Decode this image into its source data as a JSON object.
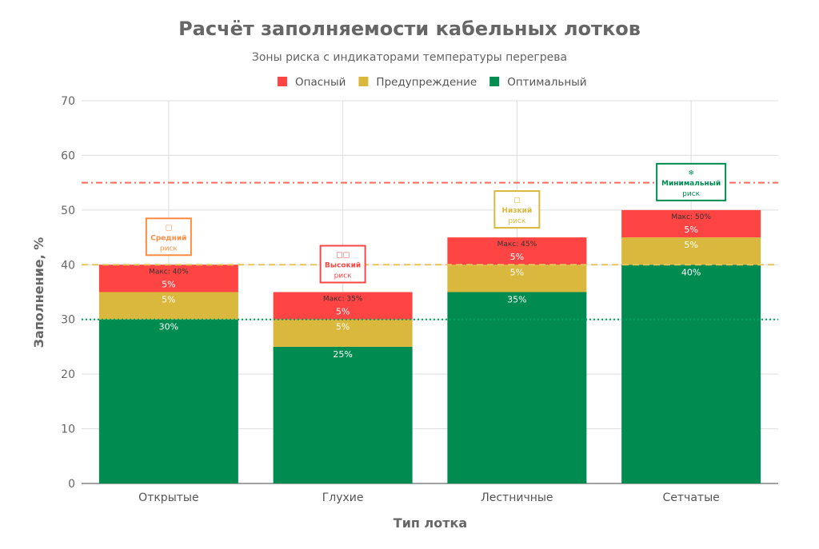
{
  "chart_data": {
    "type": "bar",
    "stacked": true,
    "title": "Расчёт заполняемости кабельных лотков",
    "subtitle": "Зоны риска с индикаторами температуры перегрева",
    "xlabel": "Тип лотка",
    "ylabel": "Заполнение, %",
    "ylim": [
      0,
      70
    ],
    "yticks": [
      0,
      10,
      20,
      30,
      40,
      50,
      60,
      70
    ],
    "grid": true,
    "legend_placement": "top",
    "categories": [
      "Открытые",
      "Глухие",
      "Лестничные",
      "Сетчатые"
    ],
    "series": [
      {
        "name": "Оптимальный",
        "color": "#008C50",
        "values": [
          30,
          25,
          35,
          40
        ],
        "labels": [
          "30%",
          "25%",
          "35%",
          "40%"
        ]
      },
      {
        "name": "Предупреждение",
        "color": "#DAB83D",
        "values": [
          5,
          5,
          5,
          5
        ],
        "labels": [
          "5%",
          "5%",
          "5%",
          "5%"
        ]
      },
      {
        "name": "Опасный",
        "color": "#FF4444",
        "values": [
          5,
          5,
          5,
          5
        ],
        "labels": [
          "5%",
          "5%",
          "5%",
          "5%"
        ]
      }
    ],
    "legend_order": [
      "Опасный",
      "Предупреждение",
      "Оптимальный"
    ],
    "max_labels": [
      "Макс: 40%",
      "Макс: 35%",
      "Макс: 45%",
      "Макс: 50%"
    ],
    "risk_annotations": [
      {
        "icon": "□",
        "level": "Средний",
        "suffix": "риск",
        "color": "#FF8C42"
      },
      {
        "icon": "□□",
        "level": "Высокий",
        "suffix": "риск",
        "color": "#FF4444"
      },
      {
        "icon": "□",
        "level": "Низкий",
        "suffix": "риск",
        "color": "#DAB83D"
      },
      {
        "icon": "❄",
        "level": "Минимальный",
        "suffix": "риск",
        "color": "#008C50"
      }
    ],
    "reference_lines": [
      {
        "y": 55,
        "style": "dashdot",
        "color": "#FF6B5B"
      },
      {
        "y": 40,
        "style": "dashed",
        "color": "#E8C45A"
      },
      {
        "y": 30,
        "style": "dotted",
        "color": "#00A060"
      }
    ]
  }
}
